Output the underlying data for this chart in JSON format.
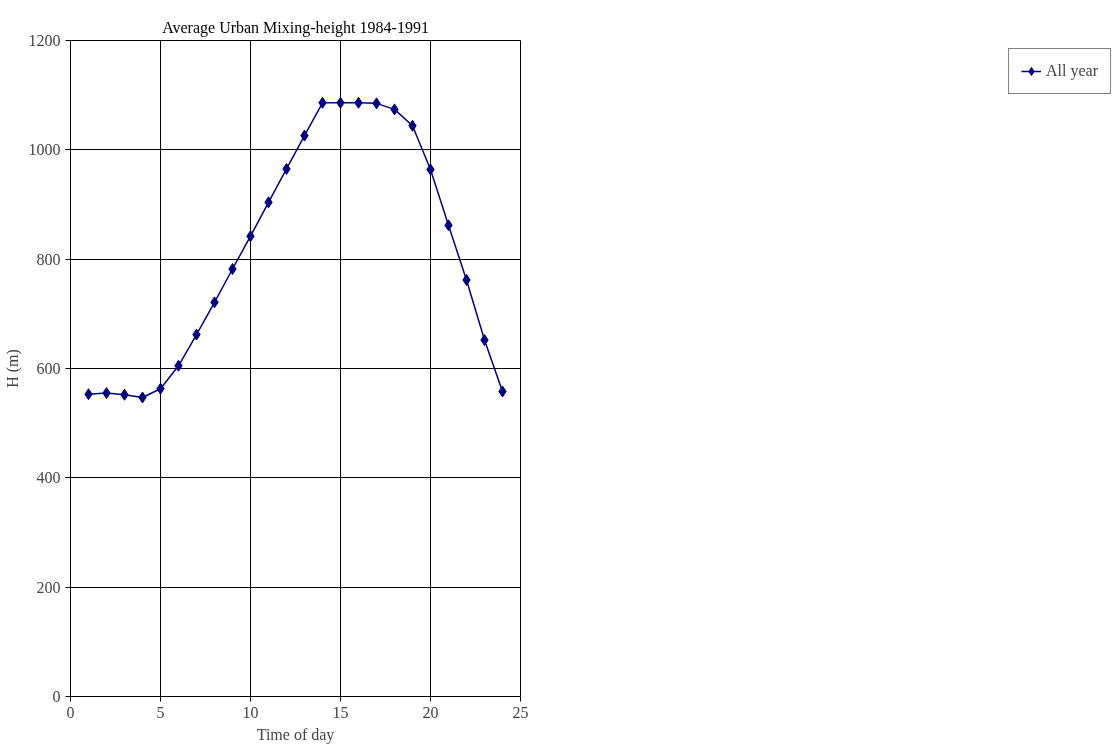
{
  "chart_data": {
    "type": "line",
    "title": "Average Urban Mixing-height 1984-1991",
    "xlabel": "Time of day",
    "ylabel": "H (m)",
    "x": [
      1,
      2,
      3,
      4,
      5,
      6,
      7,
      8,
      9,
      10,
      11,
      12,
      13,
      14,
      15,
      16,
      17,
      18,
      19,
      20,
      21,
      22,
      23,
      24
    ],
    "series": [
      {
        "name": "All year",
        "color": "#000080",
        "values": [
          553,
          555,
          552,
          547,
          563,
          605,
          662,
          721,
          782,
          842,
          904,
          965,
          1026,
          1086,
          1086,
          1086,
          1085,
          1074,
          1044,
          964,
          862,
          762,
          652,
          558
        ]
      }
    ],
    "xlim": [
      0,
      25
    ],
    "xticks": [
      0,
      5,
      10,
      15,
      20,
      25
    ],
    "ylim": [
      0,
      1200
    ],
    "yticks": [
      0,
      200,
      400,
      600,
      800,
      1000,
      1200
    ],
    "grid": true,
    "legend": "right",
    "marker": "diamond",
    "line_style": "solid"
  }
}
